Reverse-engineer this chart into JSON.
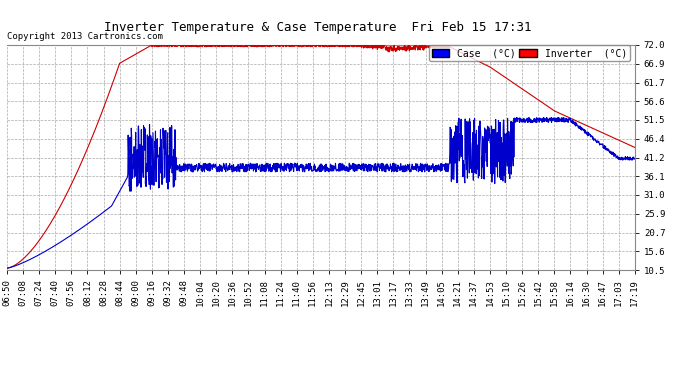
{
  "title": "Inverter Temperature & Case Temperature  Fri Feb 15 17:31",
  "copyright": "Copyright 2013 Cartronics.com",
  "background_color": "#ffffff",
  "plot_bg_color": "#ffffff",
  "grid_color": "#aaaaaa",
  "ylim": [
    10.5,
    72.0
  ],
  "yticks": [
    10.5,
    15.6,
    20.7,
    25.9,
    31.0,
    36.1,
    41.2,
    46.4,
    51.5,
    56.6,
    61.7,
    66.9,
    72.0
  ],
  "xtick_labels": [
    "06:50",
    "07:08",
    "07:24",
    "07:40",
    "07:56",
    "08:12",
    "08:28",
    "08:44",
    "09:00",
    "09:16",
    "09:32",
    "09:48",
    "10:04",
    "10:20",
    "10:36",
    "10:52",
    "11:08",
    "11:24",
    "11:40",
    "11:56",
    "12:13",
    "12:29",
    "12:45",
    "13:01",
    "13:17",
    "13:33",
    "13:49",
    "14:05",
    "14:21",
    "14:37",
    "14:53",
    "15:10",
    "15:26",
    "15:42",
    "15:58",
    "16:14",
    "16:30",
    "16:47",
    "17:03",
    "17:19"
  ],
  "legend_case_color": "#0000ff",
  "legend_inverter_color": "#ff0000",
  "case_line_color": "#0000cc",
  "inverter_line_color": "#cc0000",
  "title_fontsize": 9,
  "tick_fontsize": 6.5
}
